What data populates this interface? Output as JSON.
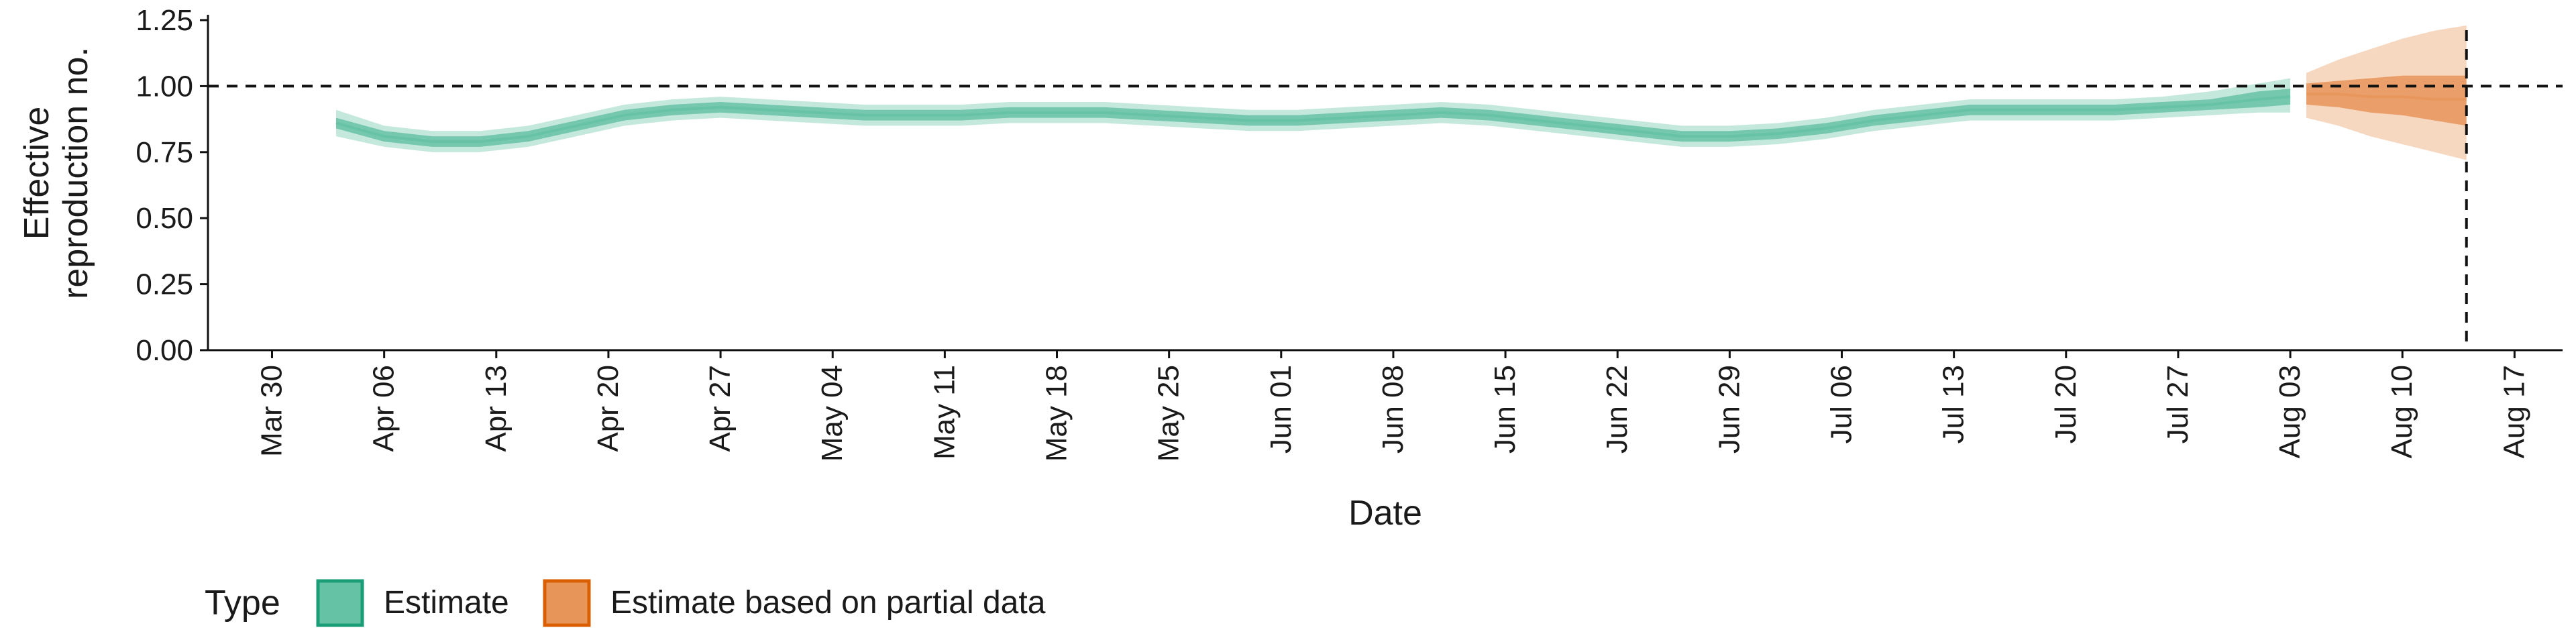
{
  "chart_data": {
    "type": "area",
    "title": "",
    "xlabel": "Date",
    "ylabel": [
      "Effective",
      "reproduction no."
    ],
    "ylim": [
      0.0,
      1.25
    ],
    "xlim": [
      "2020-03-26",
      "2020-08-20"
    ],
    "reference_line_y": 1.0,
    "reference_line_x": "2020-08-14",
    "grid": false,
    "legend_position": "bottom-left",
    "x_ticks": [
      "Mar 30",
      "Apr 06",
      "Apr 13",
      "Apr 20",
      "Apr 27",
      "May 04",
      "May 11",
      "May 18",
      "May 25",
      "Jun 01",
      "Jun 08",
      "Jun 15",
      "Jun 22",
      "Jun 29",
      "Jul 06",
      "Jul 13",
      "Jul 20",
      "Jul 27",
      "Aug 03",
      "Aug 10",
      "Aug 17"
    ],
    "x_tick_dates": [
      "2020-03-30",
      "2020-04-06",
      "2020-04-13",
      "2020-04-20",
      "2020-04-27",
      "2020-05-04",
      "2020-05-11",
      "2020-05-18",
      "2020-05-25",
      "2020-06-01",
      "2020-06-08",
      "2020-06-15",
      "2020-06-22",
      "2020-06-29",
      "2020-07-06",
      "2020-07-13",
      "2020-07-20",
      "2020-07-27",
      "2020-08-03",
      "2020-08-10",
      "2020-08-17"
    ],
    "y_ticks": [
      "0.00",
      "0.25",
      "0.50",
      "0.75",
      "1.00",
      "1.25"
    ],
    "y_tick_values": [
      0.0,
      0.25,
      0.5,
      0.75,
      1.0,
      1.25
    ],
    "legend": {
      "title": "Type",
      "items": [
        {
          "label": "Estimate",
          "color": "#66c2a5"
        },
        {
          "label": "Estimate based on partial data",
          "color": "#e8955a"
        }
      ]
    },
    "series": [
      {
        "name": "Estimate",
        "color": "#66c2a5",
        "x": [
          "2020-04-03",
          "2020-04-06",
          "2020-04-09",
          "2020-04-12",
          "2020-04-15",
          "2020-04-18",
          "2020-04-21",
          "2020-04-24",
          "2020-04-27",
          "2020-04-30",
          "2020-05-03",
          "2020-05-06",
          "2020-05-09",
          "2020-05-12",
          "2020-05-15",
          "2020-05-18",
          "2020-05-21",
          "2020-05-24",
          "2020-05-27",
          "2020-05-30",
          "2020-06-02",
          "2020-06-05",
          "2020-06-08",
          "2020-06-11",
          "2020-06-14",
          "2020-06-17",
          "2020-06-20",
          "2020-06-23",
          "2020-06-26",
          "2020-06-29",
          "2020-07-02",
          "2020-07-05",
          "2020-07-08",
          "2020-07-11",
          "2020-07-14",
          "2020-07-17",
          "2020-07-20",
          "2020-07-23",
          "2020-07-26",
          "2020-07-29",
          "2020-08-01",
          "2020-08-03"
        ],
        "median": [
          0.86,
          0.81,
          0.79,
          0.79,
          0.81,
          0.85,
          0.89,
          0.91,
          0.92,
          0.91,
          0.9,
          0.89,
          0.89,
          0.89,
          0.9,
          0.9,
          0.9,
          0.89,
          0.88,
          0.87,
          0.87,
          0.88,
          0.89,
          0.9,
          0.89,
          0.87,
          0.85,
          0.83,
          0.81,
          0.81,
          0.82,
          0.84,
          0.87,
          0.89,
          0.91,
          0.91,
          0.91,
          0.91,
          0.92,
          0.93,
          0.95,
          0.96
        ],
        "inner_low": [
          0.84,
          0.79,
          0.77,
          0.77,
          0.79,
          0.83,
          0.87,
          0.89,
          0.9,
          0.89,
          0.88,
          0.87,
          0.87,
          0.87,
          0.88,
          0.88,
          0.88,
          0.87,
          0.86,
          0.85,
          0.85,
          0.86,
          0.87,
          0.88,
          0.87,
          0.85,
          0.83,
          0.81,
          0.79,
          0.79,
          0.8,
          0.82,
          0.85,
          0.87,
          0.89,
          0.89,
          0.89,
          0.89,
          0.9,
          0.91,
          0.92,
          0.93
        ],
        "inner_high": [
          0.88,
          0.83,
          0.81,
          0.81,
          0.83,
          0.87,
          0.91,
          0.93,
          0.94,
          0.93,
          0.92,
          0.91,
          0.91,
          0.91,
          0.92,
          0.92,
          0.92,
          0.91,
          0.9,
          0.89,
          0.89,
          0.9,
          0.91,
          0.92,
          0.91,
          0.89,
          0.87,
          0.85,
          0.83,
          0.83,
          0.84,
          0.86,
          0.89,
          0.91,
          0.93,
          0.93,
          0.93,
          0.93,
          0.94,
          0.95,
          0.98,
          0.99
        ],
        "outer_low": [
          0.81,
          0.77,
          0.75,
          0.75,
          0.77,
          0.81,
          0.85,
          0.87,
          0.88,
          0.87,
          0.86,
          0.85,
          0.85,
          0.85,
          0.86,
          0.86,
          0.86,
          0.85,
          0.84,
          0.83,
          0.83,
          0.84,
          0.85,
          0.86,
          0.85,
          0.83,
          0.81,
          0.79,
          0.77,
          0.77,
          0.78,
          0.8,
          0.83,
          0.85,
          0.87,
          0.87,
          0.87,
          0.87,
          0.88,
          0.89,
          0.9,
          0.9
        ],
        "outer_high": [
          0.91,
          0.85,
          0.83,
          0.83,
          0.85,
          0.89,
          0.93,
          0.95,
          0.96,
          0.95,
          0.94,
          0.93,
          0.93,
          0.93,
          0.94,
          0.94,
          0.94,
          0.93,
          0.92,
          0.91,
          0.91,
          0.92,
          0.93,
          0.94,
          0.93,
          0.91,
          0.89,
          0.87,
          0.85,
          0.85,
          0.86,
          0.88,
          0.91,
          0.93,
          0.95,
          0.95,
          0.95,
          0.95,
          0.96,
          0.98,
          1.01,
          1.03
        ]
      },
      {
        "name": "Estimate based on partial data",
        "color": "#e8955a",
        "x": [
          "2020-08-04",
          "2020-08-06",
          "2020-08-08",
          "2020-08-10",
          "2020-08-12",
          "2020-08-14"
        ],
        "median": [
          0.97,
          0.97,
          0.96,
          0.96,
          0.95,
          0.95
        ],
        "inner_low": [
          0.93,
          0.92,
          0.9,
          0.89,
          0.87,
          0.85
        ],
        "inner_high": [
          1.01,
          1.02,
          1.03,
          1.04,
          1.04,
          1.04
        ],
        "outer_low": [
          0.88,
          0.85,
          0.81,
          0.78,
          0.75,
          0.72
        ],
        "outer_high": [
          1.05,
          1.1,
          1.14,
          1.18,
          1.21,
          1.23
        ]
      }
    ]
  }
}
